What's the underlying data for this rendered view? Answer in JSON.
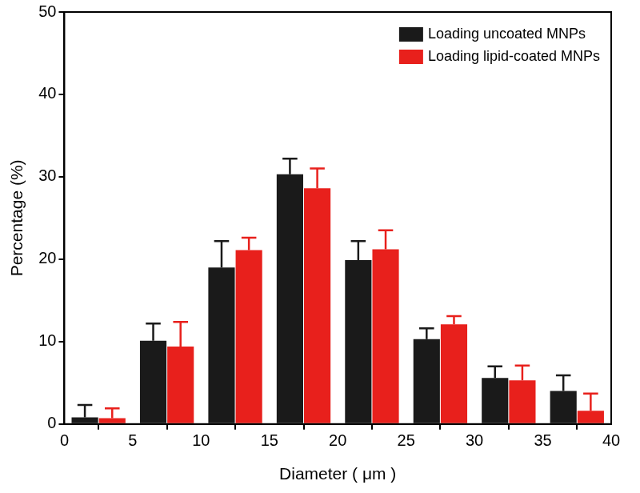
{
  "chart_data": {
    "type": "bar",
    "x_label": "Diameter ( μm )",
    "y_label": "Percentage (%)",
    "bins": [
      0,
      5,
      10,
      15,
      20,
      25,
      30,
      35,
      40
    ],
    "series": [
      {
        "name": "Loading uncoated MNPs",
        "color": "#1a1a1a",
        "values": [
          0.8,
          10.1,
          19.0,
          30.3,
          19.9,
          10.3,
          5.6,
          4.0
        ],
        "errors": [
          1.5,
          2.1,
          3.2,
          1.9,
          2.3,
          1.3,
          1.4,
          1.9
        ]
      },
      {
        "name": "Loading lipid-coated MNPs",
        "color": "#e8201c",
        "values": [
          0.7,
          9.4,
          21.1,
          28.6,
          21.2,
          12.1,
          5.3,
          1.6
        ],
        "errors": [
          1.2,
          3.0,
          1.5,
          2.4,
          2.3,
          1.0,
          1.8,
          2.1
        ]
      }
    ],
    "xlim": [
      0,
      40
    ],
    "xticks": [
      0,
      5,
      10,
      15,
      20,
      25,
      30,
      35,
      40
    ],
    "ylim": [
      0,
      50
    ],
    "yticks": [
      0,
      10,
      20,
      30,
      40,
      50
    ],
    "grid": false,
    "legend": "upper right"
  }
}
